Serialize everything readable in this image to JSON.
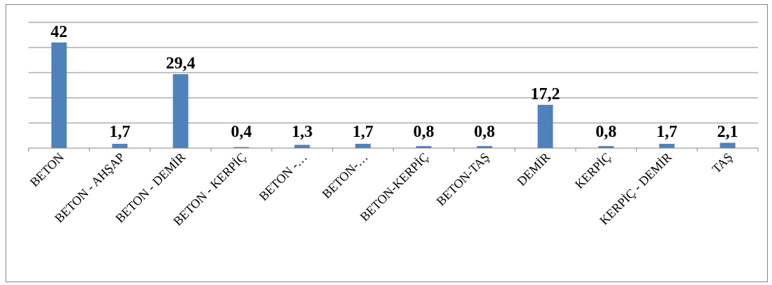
{
  "chart_data": {
    "type": "bar",
    "categories": [
      "BETON",
      "BETON - AHŞAP",
      "BETON - DEMİR",
      "BETON - KERPİÇ",
      "BETON -…",
      "BETON-…",
      "BETON-KERPİÇ",
      "BETON-TAŞ",
      "DEMİR",
      "KERPİÇ",
      "KERPİÇ - DEMİR",
      "TAŞ"
    ],
    "values": [
      42,
      1.7,
      29.4,
      0.4,
      1.3,
      1.7,
      0.8,
      0.8,
      17.2,
      0.8,
      1.7,
      2.1
    ],
    "data_labels": [
      "42",
      "1,7",
      "29,4",
      "0,4",
      "1,3",
      "1,7",
      "0,8",
      "0,8",
      "17,2",
      "0,8",
      "1,7",
      "2,1"
    ],
    "ylim": [
      0,
      50
    ],
    "grid": true,
    "legend": "none",
    "bar_color": "#4F81BD"
  }
}
